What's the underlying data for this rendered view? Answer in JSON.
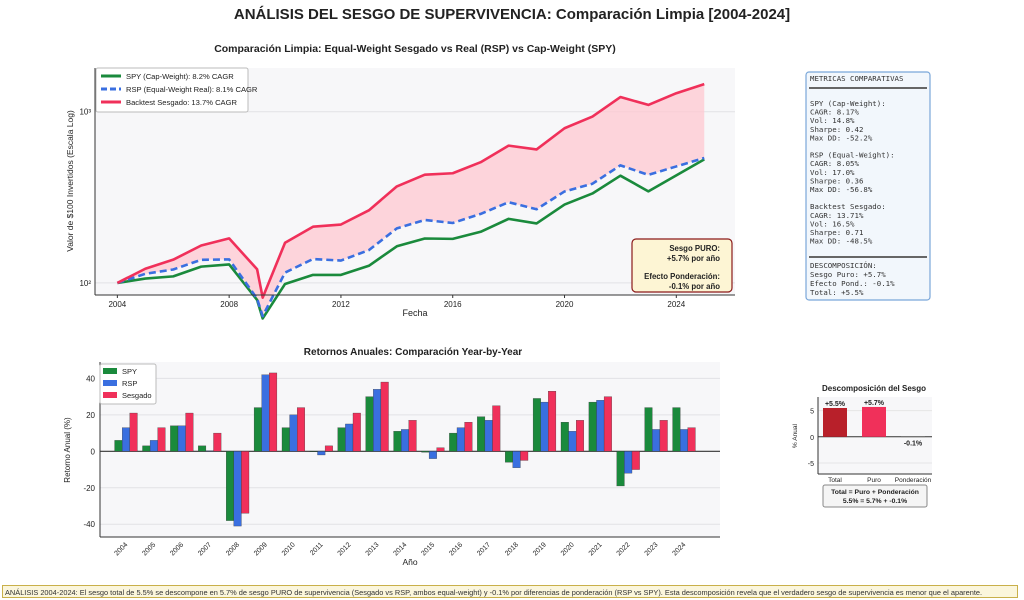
{
  "title": "ANÁLISIS DEL SESGO DE SUPERVIVENCIA: Comparación Limpia [2004-2024]",
  "footer": "ANÁLISIS 2004-2024: El sesgo total de 5.5% se descompone en 5.7% de sesgo PURO de supervivencia (Sesgado vs RSP, ambos equal-weight) y -0.1% por diferencias de ponderación (RSP vs SPY). Esta descomposición revela que el verdadero sesgo de supervivencia es menor que el aparente.",
  "colors": {
    "spy": "#1a8a3c",
    "rsp": "#3a6fe0",
    "seg": "#f0305a",
    "fill": "#ffc8d0",
    "total": "#b8202a",
    "puro": "#f0305a"
  },
  "metrics": {
    "header": "METRICAS COMPARATIVAS",
    "lines": [
      "SPY (Cap-Weight):",
      "  CAGR: 8.17%",
      "  Vol: 14.8%",
      "  Sharpe: 0.42",
      "  Max DD: -52.2%",
      "",
      "RSP (Equal-Weight):",
      "  CAGR: 8.05%",
      "  Vol: 17.0%",
      "  Sharpe: 0.36",
      "  Max DD: -56.8%",
      "",
      "Backtest Sesgado:",
      "  CAGR: 13.71%",
      "  Vol: 16.5%",
      "  Sharpe: 0.71",
      "  Max DD: -48.5%"
    ],
    "decomp": [
      "DESCOMPOSICIÓN:",
      "Sesgo Puro: +5.7%",
      "Efecto Pond.: -0.1%",
      "Total: +5.5%"
    ]
  },
  "chart_data": [
    {
      "type": "line",
      "title": "Comparación Limpia: Equal-Weight Sesgado vs Real (RSP) vs Cap-Weight (SPY)",
      "xlabel": "Fecha",
      "ylabel": "Valor de $100 Invertidos (Escala Log)",
      "yscale": "log",
      "ylim": [
        85,
        1800
      ],
      "xlim": [
        2003.2,
        2026.1
      ],
      "xticks": [
        "2004",
        "2008",
        "2012",
        "2016",
        "2020",
        "2024"
      ],
      "yticks": [
        {
          "value": 100,
          "label": "10²"
        },
        {
          "value": 1000,
          "label": "10³"
        }
      ],
      "legend": "top-left",
      "x": [
        2004,
        2005,
        2006,
        2007,
        2008,
        2009,
        2009.2,
        2010,
        2011,
        2012,
        2013,
        2014,
        2015,
        2016,
        2017,
        2018,
        2019,
        2020,
        2021,
        2022,
        2023,
        2024,
        2025
      ],
      "series": [
        {
          "name": "SPY (Cap-Weight): 8.2% CAGR",
          "key": "spy",
          "values": [
            100,
            106,
            109.2,
            124.5,
            128.2,
            79.5,
            62,
            98.6,
            111.4,
            111.4,
            125.9,
            163.7,
            181.7,
            180.8,
            198.9,
            236.7,
            222.5,
            287,
            333,
            423,
            342.6,
            424.8,
            526.8
          ]
        },
        {
          "name": "RSP (Equal-Weight Real): 8.1% CAGR",
          "key": "rsp",
          "dashed": true,
          "values": [
            100,
            113,
            119.8,
            136.5,
            137.2,
            80.9,
            64,
            114.9,
            137.9,
            135.1,
            155.4,
            208.2,
            233.2,
            223.9,
            253,
            296,
            269.4,
            342.1,
            379.7,
            486,
            427.7,
            479,
            536.5
          ]
        },
        {
          "name": "Backtest Sesgado: 13.7% CAGR",
          "key": "seg",
          "values": [
            100,
            121,
            136.7,
            165.4,
            182,
            120.1,
            82,
            171.7,
            212.9,
            219.3,
            265.4,
            366.2,
            428.5,
            437,
            506.9,
            633.6,
            601.9,
            800.6,
            936.7,
            1217.7,
            1096,
            1282,
            1449
          ]
        }
      ],
      "annotation": [
        "Sesgo PURO:",
        "+5.7% por año",
        "",
        "Efecto Ponderación:",
        "-0.1% por año"
      ]
    },
    {
      "type": "bar",
      "title": "Retornos Anuales: Comparación Year-by-Year",
      "xlabel": "Año",
      "ylabel": "Retorno Anual (%)",
      "ylim": [
        -47,
        49
      ],
      "yticks": [
        -40,
        -20,
        0,
        20,
        40
      ],
      "legend": "top-left",
      "categories": [
        "2004",
        "2005",
        "2006",
        "2007",
        "2008",
        "2009",
        "2010",
        "2011",
        "2012",
        "2013",
        "2014",
        "2015",
        "2016",
        "2017",
        "2018",
        "2019",
        "2020",
        "2021",
        "2022",
        "2023",
        "2024"
      ],
      "series": [
        {
          "name": "SPY",
          "key": "spy",
          "values": [
            6,
            3,
            14,
            3,
            -38,
            24,
            13,
            0,
            13,
            30,
            11,
            -0.5,
            10,
            19,
            -6,
            29,
            16,
            27,
            -19,
            24,
            24
          ]
        },
        {
          "name": "RSP",
          "key": "rsp",
          "values": [
            13,
            6,
            14,
            0.3,
            -41,
            42,
            20,
            -2,
            15,
            34,
            12,
            -4,
            13,
            17,
            -9,
            27,
            11,
            28,
            -12,
            12,
            12
          ]
        },
        {
          "name": "Sesgado",
          "key": "seg",
          "values": [
            21,
            13,
            21,
            10,
            -34,
            43,
            24,
            3,
            21,
            38,
            17,
            2,
            16,
            25,
            -5,
            33,
            17,
            30,
            -10,
            17,
            13
          ]
        }
      ]
    },
    {
      "type": "bar",
      "title": "Descomposición del Sesgo",
      "ylabel": "% Anual",
      "ylim": [
        -7.1,
        7.6
      ],
      "yticks": [
        -5,
        0,
        5
      ],
      "categories": [
        "Total",
        "Puro",
        "Ponderación"
      ],
      "values": [
        5.5,
        5.7,
        -0.1
      ],
      "data_labels": [
        "+5.5%",
        "+5.7%",
        "-0.1%"
      ],
      "annotation": [
        "Total = Puro + Ponderación",
        "5.5% = 5.7% + -0.1%"
      ]
    }
  ]
}
